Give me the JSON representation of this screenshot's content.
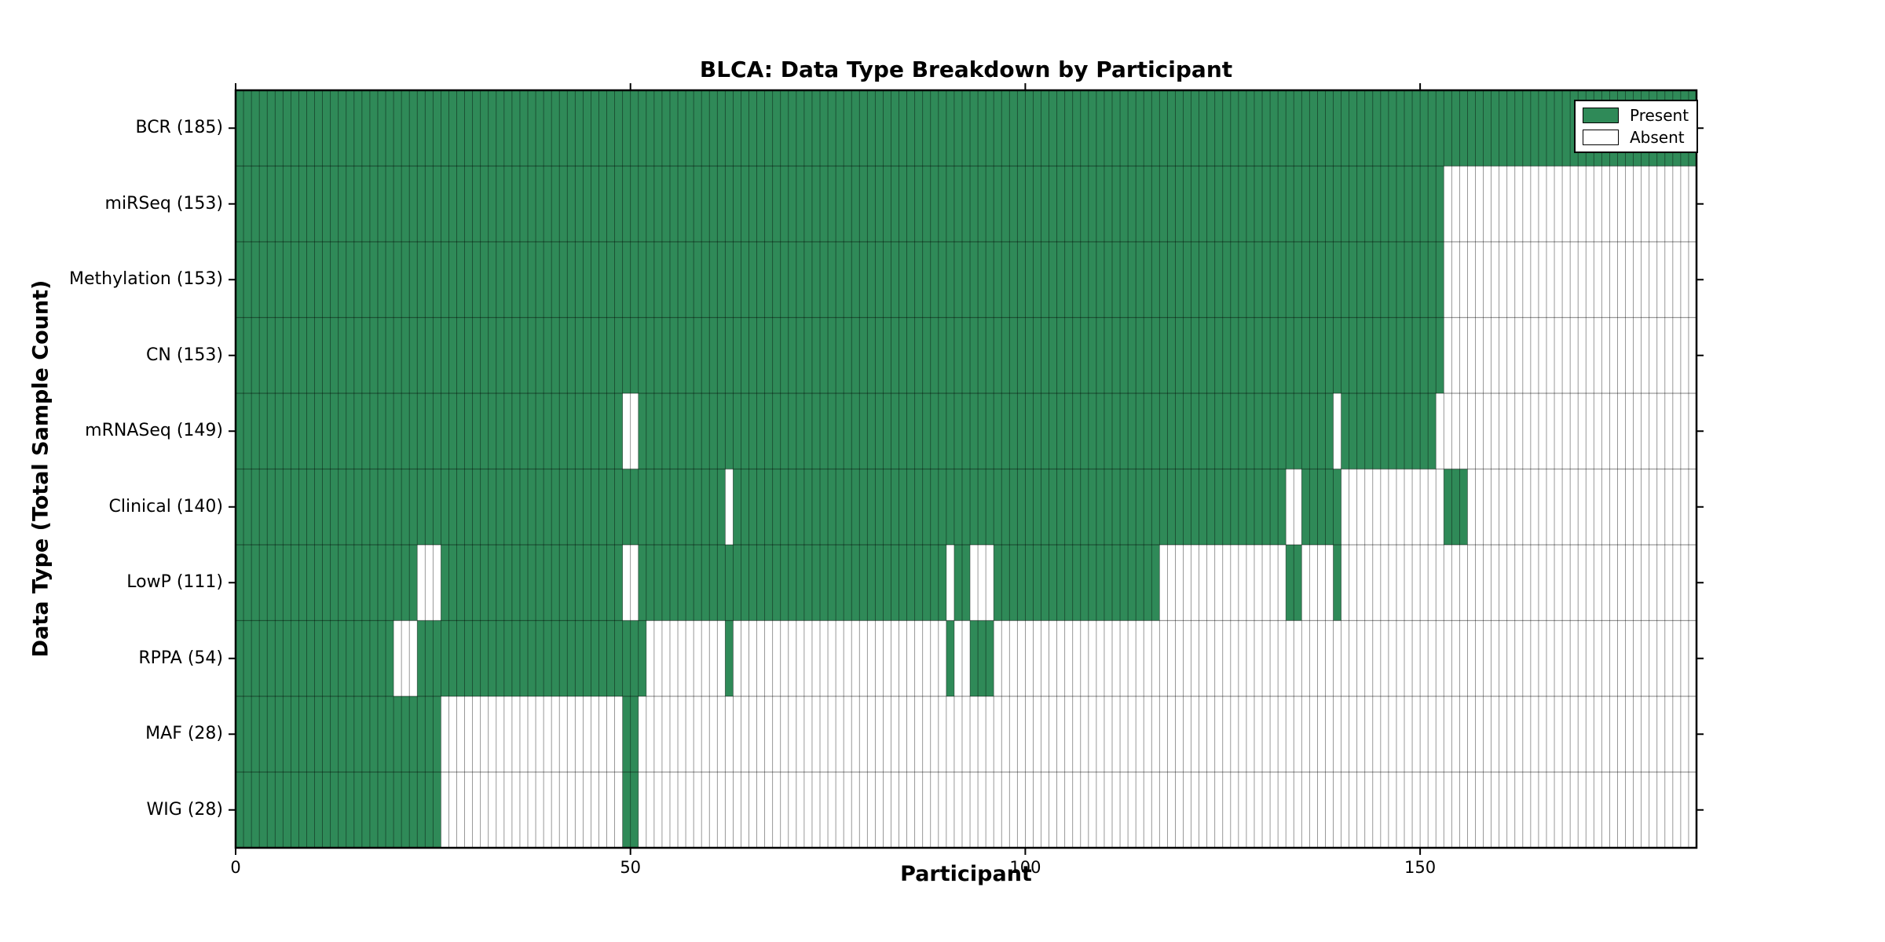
{
  "colors": {
    "present": "#2f8a58",
    "absent": "#ffffff",
    "grid": "#000000",
    "spine": "#000000"
  },
  "chart_data": {
    "type": "heatmap",
    "title": "BLCA: Data Type Breakdown by Participant",
    "xlabel": "Participant",
    "ylabel": "Data Type (Total Sample Count)",
    "x_ticks": [
      0,
      50,
      100,
      150
    ],
    "xlim": [
      0,
      185
    ],
    "n_participants": 185,
    "grid": true,
    "legend_position": "upper right",
    "legend": [
      {
        "label": "Present",
        "color": "#2f8a58"
      },
      {
        "label": "Absent",
        "color": "#ffffff"
      }
    ],
    "rows": [
      {
        "label": "BCR (185)",
        "data_type": "BCR",
        "count": 185,
        "present_ranges": [
          [
            0,
            184
          ]
        ]
      },
      {
        "label": "miRSeq (153)",
        "data_type": "miRSeq",
        "count": 153,
        "present_ranges": [
          [
            0,
            152
          ]
        ]
      },
      {
        "label": "Methylation (153)",
        "data_type": "Methylation",
        "count": 153,
        "present_ranges": [
          [
            0,
            152
          ]
        ]
      },
      {
        "label": "CN (153)",
        "data_type": "CN",
        "count": 153,
        "present_ranges": [
          [
            0,
            152
          ]
        ]
      },
      {
        "label": "mRNASeq (149)",
        "data_type": "mRNASeq",
        "count": 149,
        "present_ranges": [
          [
            0,
            48
          ],
          [
            51,
            138
          ],
          [
            140,
            151
          ]
        ]
      },
      {
        "label": "Clinical (140)",
        "data_type": "Clinical",
        "count": 140,
        "present_ranges": [
          [
            0,
            61
          ],
          [
            63,
            132
          ],
          [
            135,
            139
          ],
          [
            153,
            155
          ]
        ]
      },
      {
        "label": "LowP (111)",
        "data_type": "LowP",
        "count": 111,
        "present_ranges": [
          [
            0,
            22
          ],
          [
            26,
            48
          ],
          [
            51,
            89
          ],
          [
            91,
            92
          ],
          [
            96,
            116
          ],
          [
            133,
            134
          ],
          [
            139,
            139
          ]
        ]
      },
      {
        "label": "RPPA (54)",
        "data_type": "RPPA",
        "count": 54,
        "present_ranges": [
          [
            0,
            19
          ],
          [
            23,
            51
          ],
          [
            62,
            62
          ],
          [
            90,
            90
          ],
          [
            93,
            95
          ]
        ]
      },
      {
        "label": "MAF (28)",
        "data_type": "MAF",
        "count": 28,
        "present_ranges": [
          [
            0,
            25
          ],
          [
            49,
            50
          ]
        ]
      },
      {
        "label": "WIG (28)",
        "data_type": "WIG",
        "count": 28,
        "present_ranges": [
          [
            0,
            25
          ],
          [
            49,
            50
          ]
        ]
      }
    ]
  }
}
